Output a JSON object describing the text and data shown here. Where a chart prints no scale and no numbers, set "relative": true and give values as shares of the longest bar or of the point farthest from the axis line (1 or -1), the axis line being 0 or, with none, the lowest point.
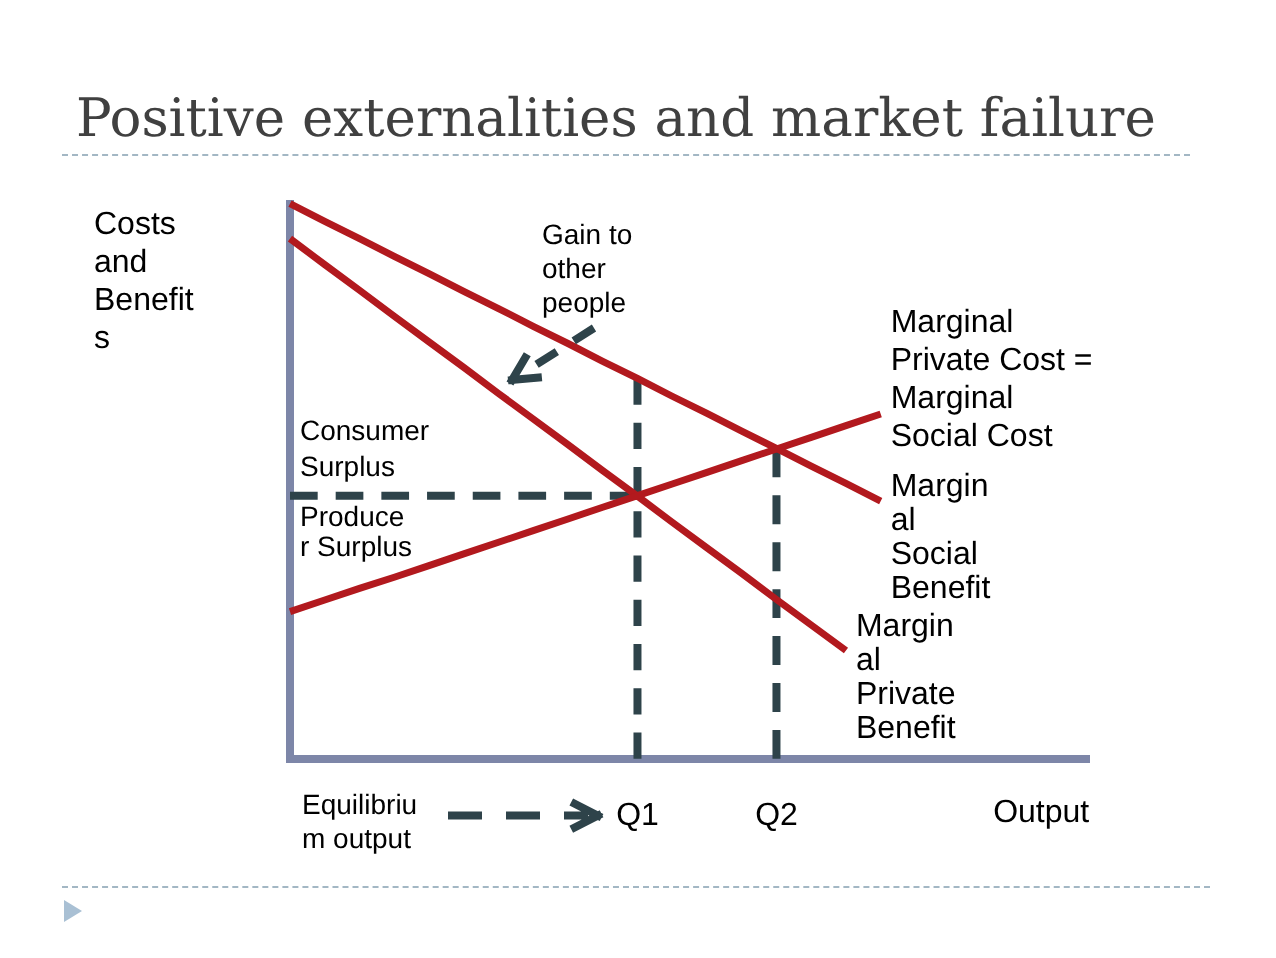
{
  "chart_data": {
    "type": "line",
    "title": "Positive externalities and market failure",
    "xlabel": "Output",
    "ylabel": "Costs and Benefits",
    "relative": true,
    "categories": [
      null,
      null,
      null,
      null,
      null,
      null,
      null,
      null,
      null,
      null,
      "Q1",
      null,
      null,
      null,
      "Q2",
      null,
      null,
      null,
      null,
      null,
      null,
      null,
      null,
      null
    ],
    "series": [
      {
        "name": "Marginal Private Cost = Marginal Social Cost",
        "color": "#b2191e",
        "values": [
          0.265,
          0.286,
          0.307,
          0.327,
          0.348,
          0.369,
          0.39,
          0.411,
          0.432,
          0.453,
          0.474,
          0.495,
          0.516,
          0.537,
          0.558,
          0.579,
          0.6,
          0.621,
          null,
          null,
          null,
          null,
          null,
          null
        ]
      },
      {
        "name": "Marginal Social Benefit",
        "color": "#b2191e",
        "values": [
          1,
          0.968,
          0.937,
          0.905,
          0.874,
          0.842,
          0.811,
          0.779,
          0.748,
          0.716,
          0.685,
          0.653,
          0.622,
          0.59,
          0.559,
          0.527,
          0.496,
          0.464,
          null,
          null,
          null,
          null,
          null,
          null
        ]
      },
      {
        "name": "Marginal Private Benefit",
        "color": "#b2191e",
        "values": [
          0.937,
          0.89,
          0.844,
          0.797,
          0.751,
          0.705,
          0.658,
          0.612,
          0.566,
          0.519,
          0.473,
          0.426,
          0.38,
          0.334,
          0.287,
          0.241,
          0.195,
          null,
          null,
          null,
          null,
          null,
          null,
          null
        ]
      },
      {
        "color": "#2e434a",
        "line_style": "dashed",
        "values": [
          0.474,
          0.474,
          0.474,
          0.474,
          0.474,
          0.474,
          0.474,
          0.474,
          0.474,
          0.474,
          0.474,
          null,
          null,
          null,
          null,
          null,
          null,
          null,
          null,
          null,
          null,
          null,
          null,
          null
        ]
      },
      {
        "color": "#2e434a",
        "line_style": "dashed",
        "x": [
          "Q1",
          "Q1"
        ],
        "values": [
          0,
          0.685
        ]
      },
      {
        "color": "#2e434a",
        "line_style": "dashed",
        "x": [
          "Q2",
          "Q2"
        ],
        "values": [
          0,
          0.559
        ]
      }
    ],
    "annotations": [
      "Gain to other people",
      "Consumer Surplus",
      "Producer Surplus",
      "Equilibrium output"
    ]
  }
}
